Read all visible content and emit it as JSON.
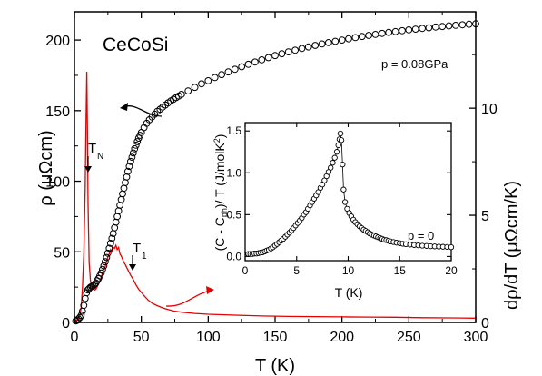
{
  "chart_data": [
    {
      "type": "scatter",
      "title": "CeCoSi",
      "annotation_pressure": "p = 0.08GPa",
      "xlabel": "T (K)",
      "ylabel_left": "ρ (μΩcm)",
      "ylabel_right": "dρ/dT (μΩcm/K)",
      "xlim": [
        0,
        300
      ],
      "ylim_left": [
        0,
        220
      ],
      "ylim_right": [
        0,
        14.5
      ],
      "x_ticks": [
        "0",
        "50",
        "100",
        "150",
        "200",
        "250",
        "300"
      ],
      "y_ticks_left": [
        "0",
        "50",
        "100",
        "150",
        "200"
      ],
      "y_ticks_right": [
        "0",
        "5",
        "10"
      ],
      "markers": [
        {
          "label": "T",
          "sub": "N",
          "x": 9.5
        },
        {
          "label": "T",
          "sub": "1",
          "x": 42
        }
      ],
      "series": [
        {
          "axis": "left",
          "style": "open-circle",
          "color": "#000000",
          "points": [
            [
              1,
              1
            ],
            [
              2,
              1.5
            ],
            [
              3,
              2.5
            ],
            [
              4,
              3.5
            ],
            [
              5,
              5
            ],
            [
              6,
              8
            ],
            [
              7,
              12
            ],
            [
              8,
              17
            ],
            [
              9,
              21
            ],
            [
              10,
              23
            ],
            [
              11,
              24
            ],
            [
              12,
              25
            ],
            [
              13,
              25.5
            ],
            [
              14,
              26
            ],
            [
              15,
              27
            ],
            [
              16,
              28
            ],
            [
              17,
              29.5
            ],
            [
              18,
              31
            ],
            [
              19,
              33
            ],
            [
              20,
              35
            ],
            [
              21,
              37.5
            ],
            [
              22,
              40
            ],
            [
              23,
              43
            ],
            [
              24,
              46
            ],
            [
              25,
              49
            ],
            [
              26,
              52.5
            ],
            [
              27,
              56
            ],
            [
              28,
              59.5
            ],
            [
              29,
              63
            ],
            [
              30,
              67
            ],
            [
              31,
              71
            ],
            [
              32,
              75
            ],
            [
              33,
              79
            ],
            [
              34,
              83
            ],
            [
              35,
              87
            ],
            [
              36,
              91
            ],
            [
              37,
              95
            ],
            [
              38,
              99
            ],
            [
              39,
              103
            ],
            [
              40,
              107
            ],
            [
              41,
              110.5
            ],
            [
              42,
              114
            ],
            [
              43,
              117
            ],
            [
              44,
              120
            ],
            [
              45,
              123
            ],
            [
              46,
              125.5
            ],
            [
              47,
              128
            ],
            [
              48,
              130.5
            ],
            [
              49,
              132.5
            ],
            [
              50,
              134.5
            ],
            [
              52,
              138
            ],
            [
              54,
              141
            ],
            [
              56,
              143.5
            ],
            [
              58,
              145.5
            ],
            [
              60,
              147.5
            ],
            [
              62,
              149.5
            ],
            [
              64,
              151
            ],
            [
              66,
              152.5
            ],
            [
              68,
              154
            ],
            [
              70,
              155.5
            ],
            [
              72,
              156.8
            ],
            [
              74,
              158
            ],
            [
              76,
              159.2
            ],
            [
              78,
              160.3
            ],
            [
              80,
              161.5
            ],
            [
              85,
              164
            ],
            [
              90,
              166.5
            ],
            [
              95,
              169
            ],
            [
              100,
              171.2
            ],
            [
              105,
              173.4
            ],
            [
              110,
              175.5
            ],
            [
              115,
              177.4
            ],
            [
              120,
              179.3
            ],
            [
              125,
              181.1
            ],
            [
              130,
              182.8
            ],
            [
              135,
              184.4
            ],
            [
              140,
              186
            ],
            [
              145,
              187.5
            ],
            [
              150,
              189
            ],
            [
              155,
              190.3
            ],
            [
              160,
              191.6
            ],
            [
              165,
              192.8
            ],
            [
              170,
              194
            ],
            [
              175,
              195.1
            ],
            [
              180,
              196.2
            ],
            [
              185,
              197.2
            ],
            [
              190,
              198.2
            ],
            [
              195,
              199.1
            ],
            [
              200,
              200
            ],
            [
              205,
              200.9
            ],
            [
              210,
              201.7
            ],
            [
              215,
              202.5
            ],
            [
              220,
              203.3
            ],
            [
              225,
              204
            ],
            [
              230,
              204.7
            ],
            [
              235,
              205.4
            ],
            [
              240,
              206
            ],
            [
              245,
              206.6
            ],
            [
              250,
              207.2
            ],
            [
              255,
              207.7
            ],
            [
              260,
              208.2
            ],
            [
              265,
              208.7
            ],
            [
              270,
              209.2
            ],
            [
              275,
              209.6
            ],
            [
              280,
              210
            ],
            [
              285,
              210.4
            ],
            [
              290,
              210.8
            ],
            [
              295,
              211.2
            ],
            [
              300,
              211.5
            ]
          ]
        },
        {
          "axis": "right",
          "style": "line",
          "color": "#e60000",
          "points": [
            [
              0,
              0.05
            ],
            [
              2,
              0.1
            ],
            [
              4,
              0.3
            ],
            [
              5,
              0.7
            ],
            [
              6,
              1.6
            ],
            [
              7,
              3.2
            ],
            [
              8,
              6.2
            ],
            [
              8.7,
              9.5
            ],
            [
              9.2,
              11.7
            ],
            [
              9.7,
              9
            ],
            [
              10.2,
              5.5
            ],
            [
              11,
              2.8
            ],
            [
              12,
              1.9
            ],
            [
              13,
              1.7
            ],
            [
              14,
              1.6
            ],
            [
              15,
              1.5
            ],
            [
              16,
              1.55
            ],
            [
              17,
              1.65
            ],
            [
              18,
              1.8
            ],
            [
              19,
              1.95
            ],
            [
              20,
              2.1
            ],
            [
              21,
              2.3
            ],
            [
              22,
              2.5
            ],
            [
              23,
              2.6
            ],
            [
              24,
              2.85
            ],
            [
              25,
              3.05
            ],
            [
              26,
              3.2
            ],
            [
              27,
              3.4
            ],
            [
              28,
              3.3
            ],
            [
              29,
              3.5
            ],
            [
              30,
              3.45
            ],
            [
              31,
              3.6
            ],
            [
              32,
              3.4
            ],
            [
              33,
              3.5
            ],
            [
              34,
              3.2
            ],
            [
              35,
              3.1
            ],
            [
              36,
              2.95
            ],
            [
              37,
              2.8
            ],
            [
              38,
              2.7
            ],
            [
              40,
              2.45
            ],
            [
              42,
              2.2
            ],
            [
              44,
              2.0
            ],
            [
              46,
              1.75
            ],
            [
              48,
              1.55
            ],
            [
              50,
              1.4
            ],
            [
              52,
              1.25
            ],
            [
              55,
              1.05
            ],
            [
              58,
              0.9
            ],
            [
              62,
              0.78
            ],
            [
              66,
              0.68
            ],
            [
              70,
              0.6
            ],
            [
              75,
              0.52
            ],
            [
              80,
              0.48
            ],
            [
              90,
              0.42
            ],
            [
              100,
              0.38
            ],
            [
              120,
              0.34
            ],
            [
              140,
              0.3
            ],
            [
              160,
              0.28
            ],
            [
              180,
              0.27
            ],
            [
              200,
              0.26
            ],
            [
              220,
              0.25
            ],
            [
              240,
              0.24
            ],
            [
              260,
              0.22
            ],
            [
              280,
              0.21
            ],
            [
              300,
              0.2
            ]
          ]
        }
      ]
    },
    {
      "type": "scatter",
      "title": "",
      "xlabel": "T (K)",
      "ylabel": "(C - C",
      "ylabel_sub": "ph",
      "ylabel_rest": ")/ T (J/molK",
      "ylabel_sup": "2",
      "ylabel_close": ")",
      "annotation": "p = 0",
      "xlim": [
        0,
        20
      ],
      "ylim": [
        -0.05,
        1.6
      ],
      "x_ticks": [
        "0",
        "5",
        "10",
        "15",
        "20"
      ],
      "y_ticks": [
        "0.0",
        "0.5",
        "1.0",
        "1.5"
      ],
      "series": [
        {
          "style": "open-circle",
          "color": "#000000",
          "points": [
            [
              0.3,
              0.03
            ],
            [
              0.5,
              0.03
            ],
            [
              0.7,
              0.03
            ],
            [
              0.9,
              0.035
            ],
            [
              1.1,
              0.035
            ],
            [
              1.3,
              0.04
            ],
            [
              1.5,
              0.045
            ],
            [
              1.7,
              0.05
            ],
            [
              1.9,
              0.06
            ],
            [
              2.1,
              0.07
            ],
            [
              2.3,
              0.08
            ],
            [
              2.5,
              0.095
            ],
            [
              2.7,
              0.11
            ],
            [
              2.9,
              0.13
            ],
            [
              3.1,
              0.15
            ],
            [
              3.3,
              0.17
            ],
            [
              3.5,
              0.19
            ],
            [
              3.7,
              0.21
            ],
            [
              3.9,
              0.235
            ],
            [
              4.1,
              0.26
            ],
            [
              4.3,
              0.285
            ],
            [
              4.5,
              0.31
            ],
            [
              4.7,
              0.34
            ],
            [
              4.9,
              0.37
            ],
            [
              5.1,
              0.4
            ],
            [
              5.3,
              0.43
            ],
            [
              5.5,
              0.46
            ],
            [
              5.7,
              0.5
            ],
            [
              5.9,
              0.53
            ],
            [
              6.1,
              0.57
            ],
            [
              6.3,
              0.61
            ],
            [
              6.5,
              0.65
            ],
            [
              6.7,
              0.69
            ],
            [
              6.9,
              0.73
            ],
            [
              7.1,
              0.77
            ],
            [
              7.3,
              0.82
            ],
            [
              7.5,
              0.86
            ],
            [
              7.7,
              0.91
            ],
            [
              7.9,
              0.96
            ],
            [
              8.1,
              1.01
            ],
            [
              8.3,
              1.06
            ],
            [
              8.5,
              1.12
            ],
            [
              8.7,
              1.18
            ],
            [
              8.9,
              1.25
            ],
            [
              9.05,
              1.33
            ],
            [
              9.15,
              1.4
            ],
            [
              9.25,
              1.47
            ],
            [
              9.35,
              1.39
            ],
            [
              9.45,
              1.1
            ],
            [
              9.55,
              0.8
            ],
            [
              9.7,
              0.65
            ],
            [
              9.9,
              0.57
            ],
            [
              10.1,
              0.52
            ],
            [
              10.3,
              0.48
            ],
            [
              10.5,
              0.44
            ],
            [
              10.7,
              0.41
            ],
            [
              10.9,
              0.385
            ],
            [
              11.1,
              0.36
            ],
            [
              11.3,
              0.34
            ],
            [
              11.5,
              0.32
            ],
            [
              11.7,
              0.305
            ],
            [
              11.9,
              0.29
            ],
            [
              12.1,
              0.275
            ],
            [
              12.3,
              0.26
            ],
            [
              12.5,
              0.25
            ],
            [
              12.7,
              0.24
            ],
            [
              12.9,
              0.23
            ],
            [
              13.1,
              0.22
            ],
            [
              13.3,
              0.21
            ],
            [
              13.5,
              0.2
            ],
            [
              13.7,
              0.195
            ],
            [
              13.9,
              0.188
            ],
            [
              14.1,
              0.18
            ],
            [
              14.4,
              0.172
            ],
            [
              14.7,
              0.165
            ],
            [
              15,
              0.158
            ],
            [
              15.3,
              0.152
            ],
            [
              15.6,
              0.147
            ],
            [
              16,
              0.142
            ],
            [
              16.4,
              0.137
            ],
            [
              16.8,
              0.133
            ],
            [
              17.2,
              0.129
            ],
            [
              17.6,
              0.126
            ],
            [
              18,
              0.123
            ],
            [
              18.4,
              0.12
            ],
            [
              18.8,
              0.118
            ],
            [
              19.2,
              0.116
            ],
            [
              19.6,
              0.114
            ],
            [
              20,
              0.112
            ]
          ]
        }
      ]
    }
  ]
}
